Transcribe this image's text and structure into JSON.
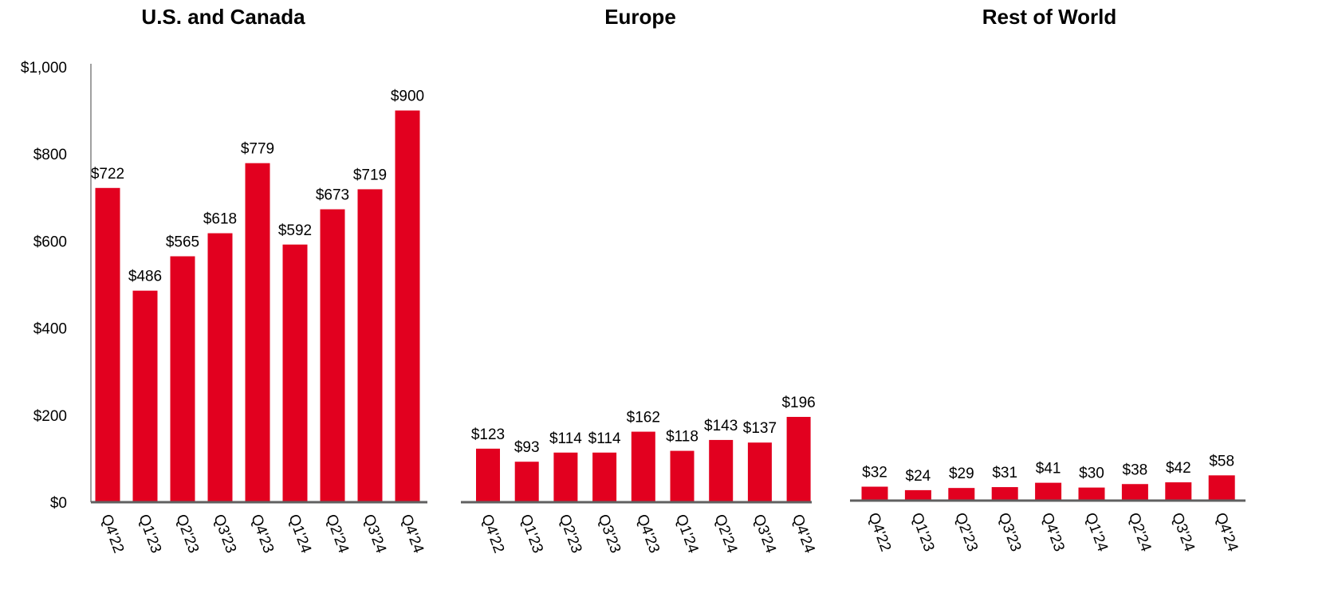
{
  "chart_data": [
    {
      "type": "bar",
      "title": "U.S. and Canada",
      "categories": [
        "Q4'22",
        "Q1'23",
        "Q2'23",
        "Q3'23",
        "Q4'23",
        "Q1'24",
        "Q2'24",
        "Q3'24",
        "Q4'24"
      ],
      "values": [
        722,
        486,
        565,
        618,
        779,
        592,
        673,
        719,
        900
      ],
      "data_labels": [
        "$722",
        "$486",
        "$565",
        "$618",
        "$779",
        "$592",
        "$673",
        "$719",
        "$900"
      ],
      "ylim": [
        0,
        1000
      ],
      "yticks": [
        0,
        200,
        400,
        600,
        800,
        1000
      ],
      "ytick_labels": [
        "$0",
        "$200",
        "$400",
        "$600",
        "$800",
        "$1,000"
      ],
      "grid": false,
      "color": "#e2001f"
    },
    {
      "type": "bar",
      "title": "Europe",
      "categories": [
        "Q4'22",
        "Q1'23",
        "Q2'23",
        "Q3'23",
        "Q4'23",
        "Q1'24",
        "Q2'24",
        "Q3'24",
        "Q4'24"
      ],
      "values": [
        123,
        93,
        114,
        114,
        162,
        118,
        143,
        137,
        196
      ],
      "data_labels": [
        "$123",
        "$93",
        "$114",
        "$114",
        "$162",
        "$118",
        "$143",
        "$137",
        "$196"
      ],
      "ylim": [
        0,
        1000
      ],
      "grid": false,
      "color": "#e2001f"
    },
    {
      "type": "bar",
      "title": "Rest of World",
      "categories": [
        "Q4'22",
        "Q1'23",
        "Q2'23",
        "Q3'23",
        "Q4'23",
        "Q1'24",
        "Q2'24",
        "Q3'24",
        "Q4'24"
      ],
      "values": [
        32,
        24,
        29,
        31,
        41,
        30,
        38,
        42,
        58
      ],
      "data_labels": [
        "$32",
        "$24",
        "$29",
        "$31",
        "$41",
        "$30",
        "$38",
        "$42",
        "$58"
      ],
      "ylim": [
        0,
        1000
      ],
      "grid": false,
      "color": "#e2001f"
    }
  ]
}
